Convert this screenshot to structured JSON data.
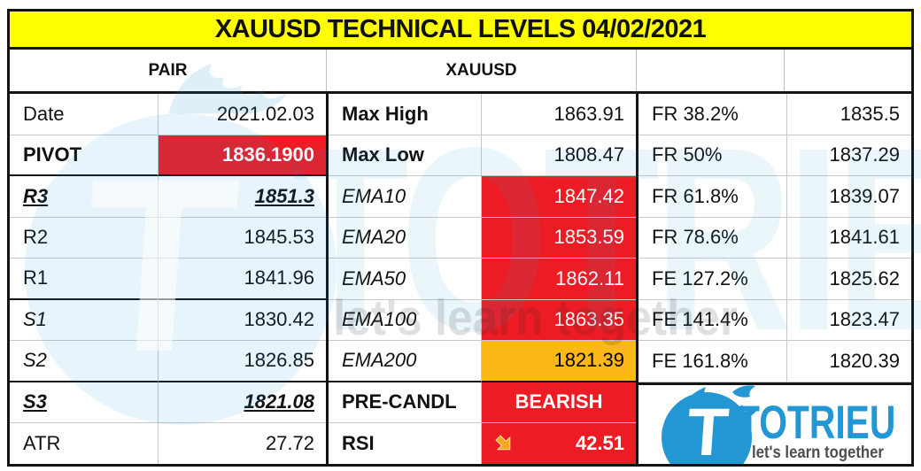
{
  "title": "XAUUSD TECHNICAL LEVELS 04/02/2021",
  "header": {
    "pair_label": "PAIR",
    "pair_value": "XAUUSD"
  },
  "left_rows": [
    {
      "name": "date",
      "label": "Date",
      "value": "2021.02.03"
    },
    {
      "name": "pivot",
      "label": "PIVOT",
      "value": "1836.1900",
      "label_style": "bold",
      "value_style": "red bold"
    },
    {
      "name": "r3",
      "label": "R3",
      "value": "1851.3",
      "label_style": "key",
      "value_style": "key"
    },
    {
      "name": "r2",
      "label": "R2",
      "value": "1845.53"
    },
    {
      "name": "r1",
      "label": "R1",
      "value": "1841.96"
    },
    {
      "name": "s1",
      "label": "S1",
      "value": "1830.42",
      "label_style": "italic"
    },
    {
      "name": "s2",
      "label": "S2",
      "value": "1826.85",
      "label_style": "italic"
    },
    {
      "name": "s3",
      "label": "S3",
      "value": "1821.08",
      "label_style": "key",
      "value_style": "key"
    },
    {
      "name": "atr",
      "label": "ATR",
      "value": "27.72"
    }
  ],
  "mid_rows": [
    {
      "name": "max-high",
      "label": "Max High",
      "value": "1863.91",
      "label_style": "bold"
    },
    {
      "name": "max-low",
      "label": "Max Low",
      "value": "1808.47",
      "label_style": "bold"
    },
    {
      "name": "ema10",
      "label": "EMA10",
      "value": "1847.42",
      "label_style": "italic",
      "value_style": "red"
    },
    {
      "name": "ema20",
      "label": "EMA20",
      "value": "1853.59",
      "label_style": "italic",
      "value_style": "red"
    },
    {
      "name": "ema50",
      "label": "EMA50",
      "value": "1862.11",
      "label_style": "italic",
      "value_style": "red"
    },
    {
      "name": "ema100",
      "label": "EMA100",
      "value": "1863.35",
      "label_style": "italic",
      "value_style": "red"
    },
    {
      "name": "ema200",
      "label": "EMA200",
      "value": "1821.39",
      "label_style": "italic",
      "value_style": "orange"
    },
    {
      "name": "pre-candle",
      "label": "PRE-CANDL",
      "value": "BEARISH",
      "label_style": "bold",
      "value_style": "red bold center"
    },
    {
      "name": "rsi",
      "label": "RSI",
      "value": "42.51",
      "label_style": "bold",
      "value_style": "red bold",
      "icon": "down-right-arrow-icon"
    }
  ],
  "right_rows": [
    {
      "name": "fr-382",
      "label": "FR 38.2%",
      "value": "1835.5"
    },
    {
      "name": "fr-50",
      "label": "FR 50%",
      "value": "1837.29"
    },
    {
      "name": "fr-618",
      "label": "FR 61.8%",
      "value": "1839.07"
    },
    {
      "name": "fr-786",
      "label": "FR 78.6%",
      "value": "1841.61"
    },
    {
      "name": "fe-1272",
      "label": "FE 127.2%",
      "value": "1825.62"
    },
    {
      "name": "fe-1414",
      "label": "FE 141.4%",
      "value": "1823.47"
    },
    {
      "name": "fe-1618",
      "label": "FE 161.8%",
      "value": "1820.39"
    }
  ],
  "logo": {
    "brand": "TOTRIEU",
    "brand_initial": "T",
    "tagline": "let's learn together"
  },
  "watermark": {
    "brand": "TOTRIEU",
    "brand_initial": "T",
    "tagline": "let's learn together"
  },
  "colors": {
    "title_bg": "#FFFF00",
    "signal_red": "#ED1C24",
    "signal_orange": "#FBB817",
    "brand_blue": "#2297D4",
    "border_black": "#141414",
    "grid_gray": "#c9c9c9"
  }
}
